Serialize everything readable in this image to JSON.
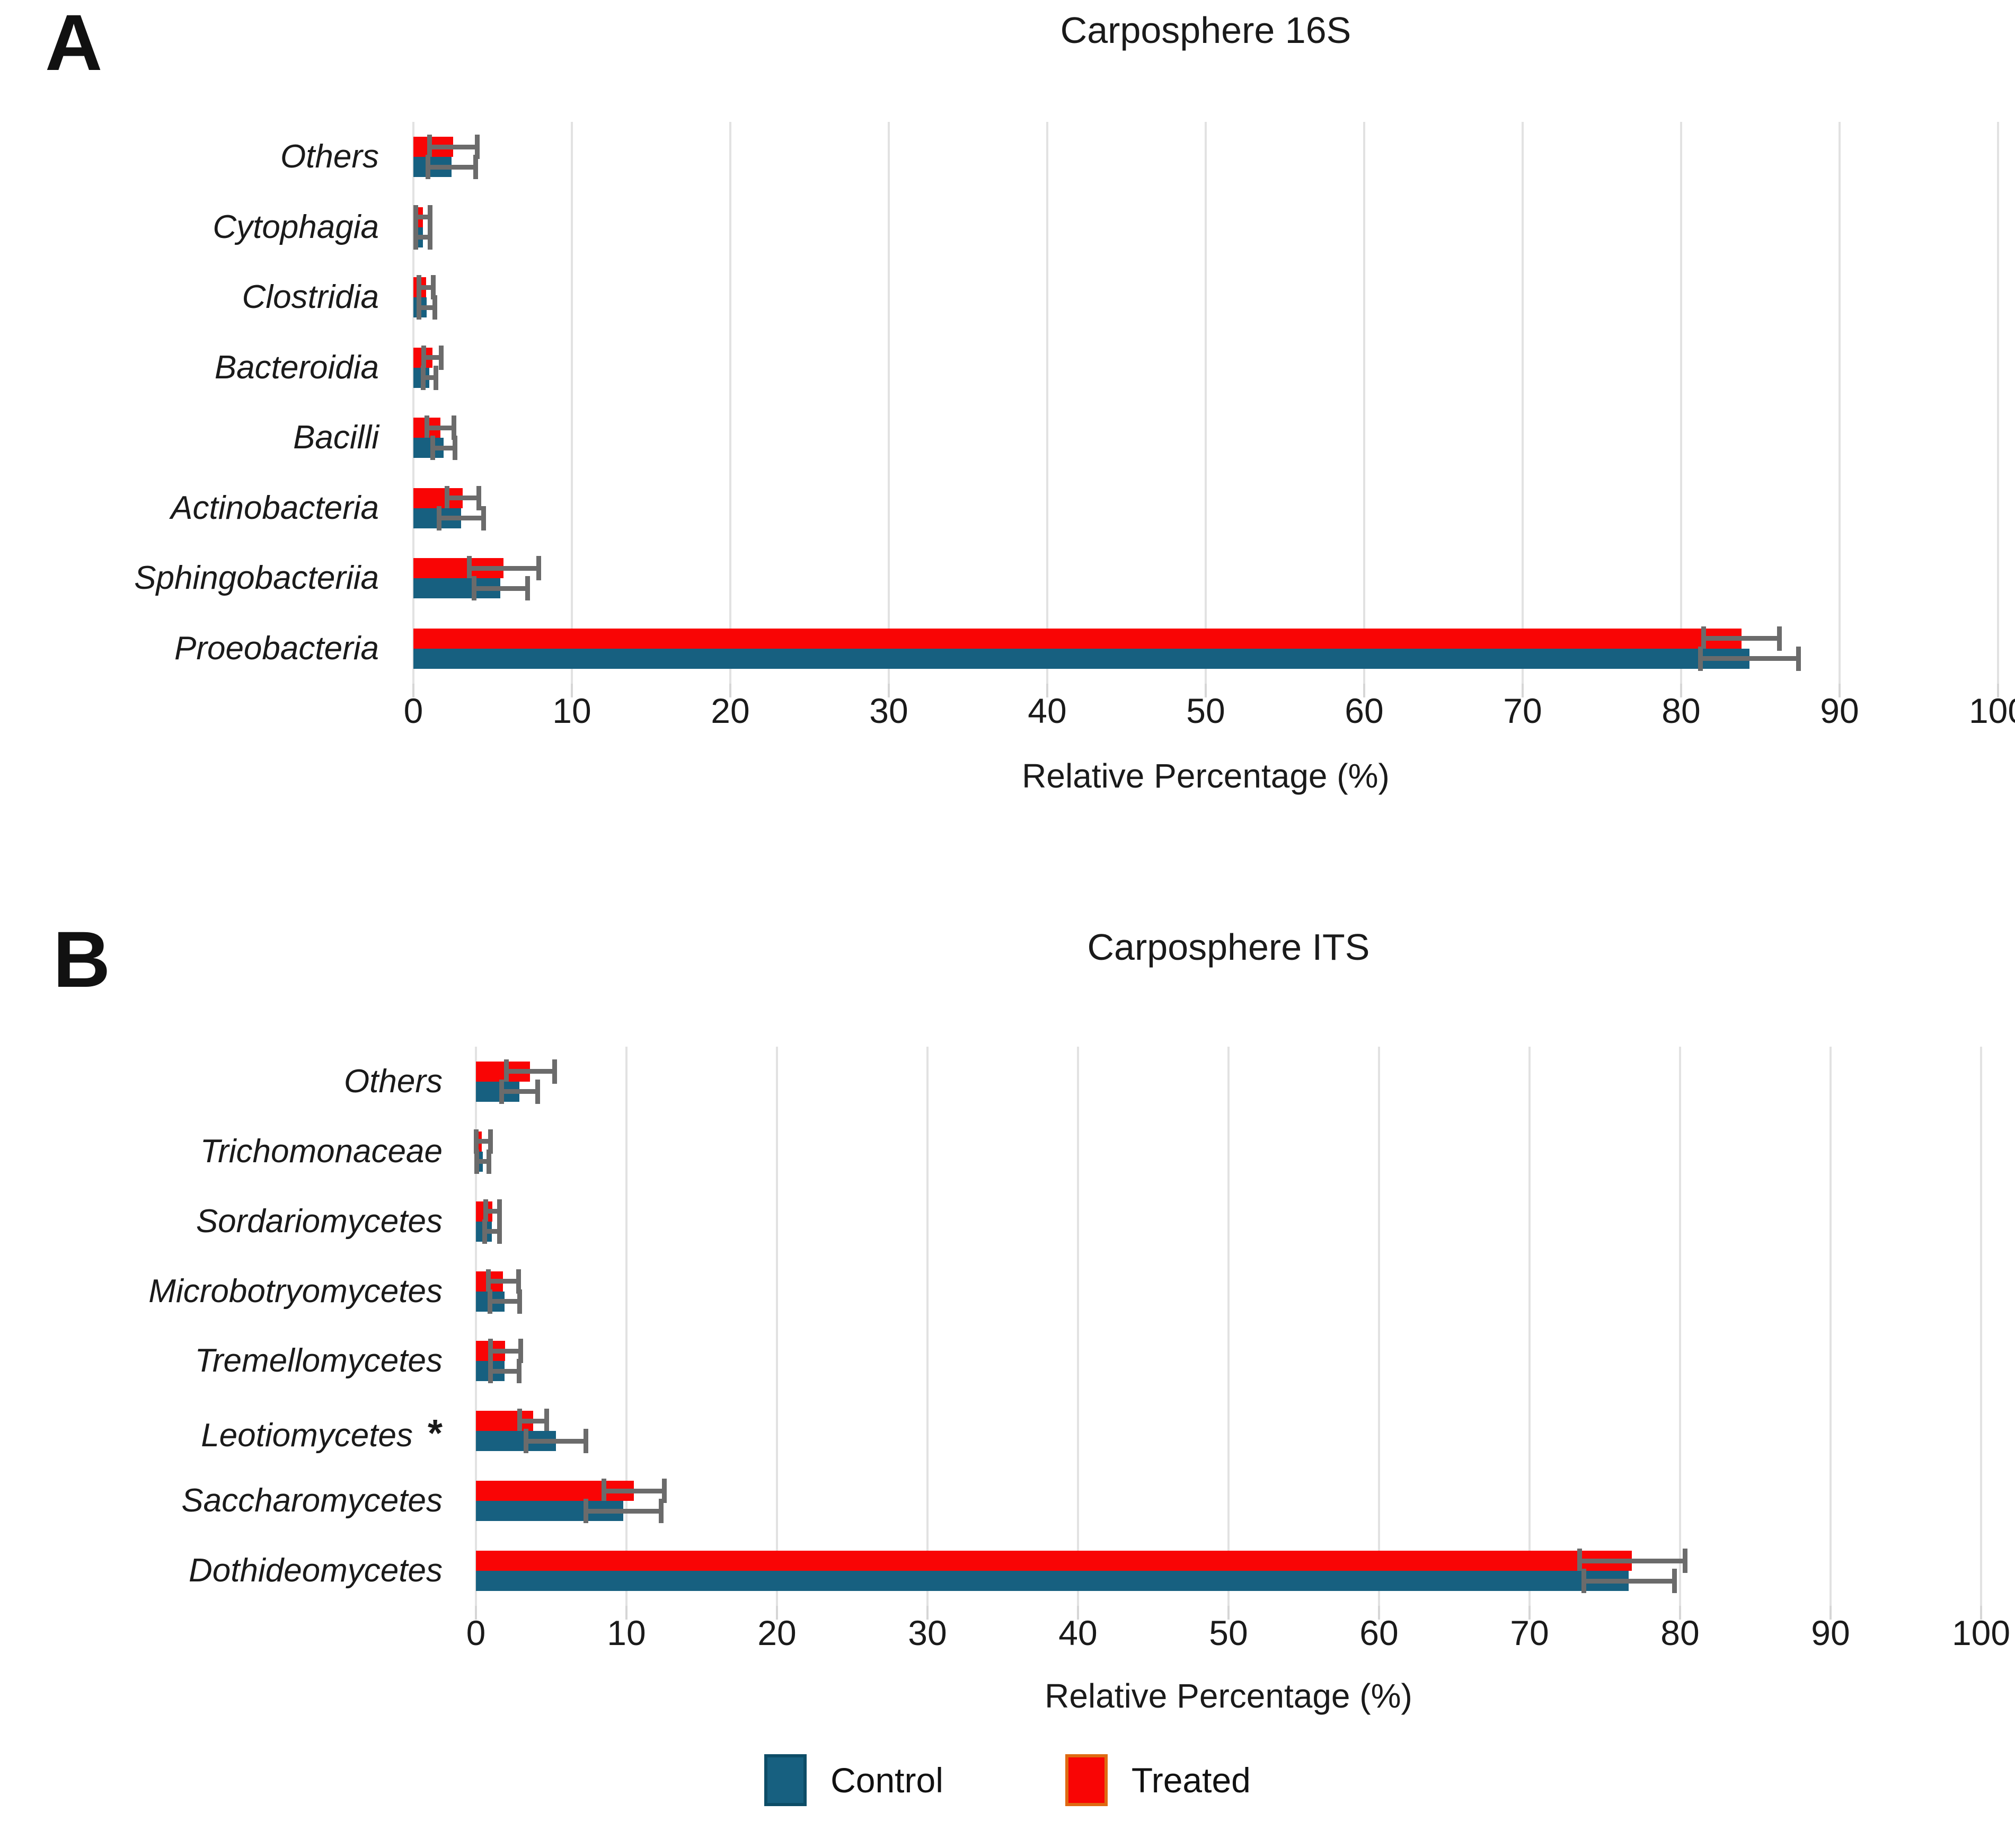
{
  "figure_title_region": {
    "panel_a_letter": "A",
    "panel_b_letter": "B"
  },
  "colors": {
    "treated": "#F90505",
    "control": "#176080",
    "error_bar": "#6b6b6b",
    "gridline": "#e2e2e2",
    "legend_control_border": "#0d4d67",
    "legend_treated_border": "#df6a12"
  },
  "legend": {
    "items": [
      {
        "label": "Control",
        "color": "#176080",
        "border": "#0d4d67"
      },
      {
        "label": "Treated",
        "color": "#F90505",
        "border": "#df6a12"
      }
    ]
  },
  "chart_data": [
    {
      "type": "bar",
      "orientation": "horizontal",
      "panel_letter": "A",
      "title": "Carposphere 16S",
      "xlabel": "Relative Percentage (%)",
      "xlim": [
        0,
        100
      ],
      "xticks": [
        0,
        10,
        20,
        30,
        40,
        50,
        60,
        70,
        80,
        90,
        100
      ],
      "grid": true,
      "legend_position": "bottom-shared",
      "categories": [
        "Others",
        "Cytophagia",
        "Clostridia",
        "Bacteroidia",
        "Bacilli",
        "Actinobacteria",
        "Sphingobacteriia",
        "Proeobacteria"
      ],
      "series": [
        {
          "name": "Treated",
          "color": "#F90505",
          "values": [
            2.5,
            0.6,
            0.8,
            1.2,
            1.7,
            3.1,
            5.7,
            83.8
          ],
          "errors": [
            1.5,
            0.45,
            0.45,
            0.55,
            0.85,
            1.0,
            2.2,
            2.4
          ]
        },
        {
          "name": "Control",
          "color": "#176080",
          "values": [
            2.4,
            0.6,
            0.85,
            1.0,
            1.9,
            3.0,
            5.5,
            84.3
          ],
          "errors": [
            1.5,
            0.45,
            0.5,
            0.4,
            0.7,
            1.4,
            1.7,
            3.1
          ]
        }
      ],
      "significance": {}
    },
    {
      "type": "bar",
      "orientation": "horizontal",
      "panel_letter": "B",
      "title": "Carposphere ITS",
      "xlabel": "Relative Percentage (%)",
      "xlim": [
        0,
        100
      ],
      "xticks": [
        0,
        10,
        20,
        30,
        40,
        50,
        60,
        70,
        80,
        90,
        100
      ],
      "grid": true,
      "legend_position": "bottom-shared",
      "categories": [
        "Others",
        "Trichomonaceae",
        "Sordariomycetes",
        "Microbotryomycetes",
        "Tremellomycetes",
        "Leotiomycetes",
        "Saccharomycetes",
        "Dothideomycetes"
      ],
      "series": [
        {
          "name": "Treated",
          "color": "#F90505",
          "values": [
            3.6,
            0.4,
            1.1,
            1.8,
            1.95,
            3.8,
            10.5,
            76.8
          ],
          "errors": [
            1.6,
            0.55,
            0.45,
            1.0,
            1.0,
            0.9,
            2.0,
            3.5
          ]
        },
        {
          "name": "Control",
          "color": "#176080",
          "values": [
            2.9,
            0.45,
            1.05,
            1.9,
            1.9,
            5.3,
            9.8,
            76.6
          ],
          "errors": [
            1.2,
            0.4,
            0.5,
            1.0,
            0.95,
            2.0,
            2.5,
            3.0
          ]
        }
      ],
      "significance": {
        "Leotiomycetes": "*"
      }
    }
  ]
}
